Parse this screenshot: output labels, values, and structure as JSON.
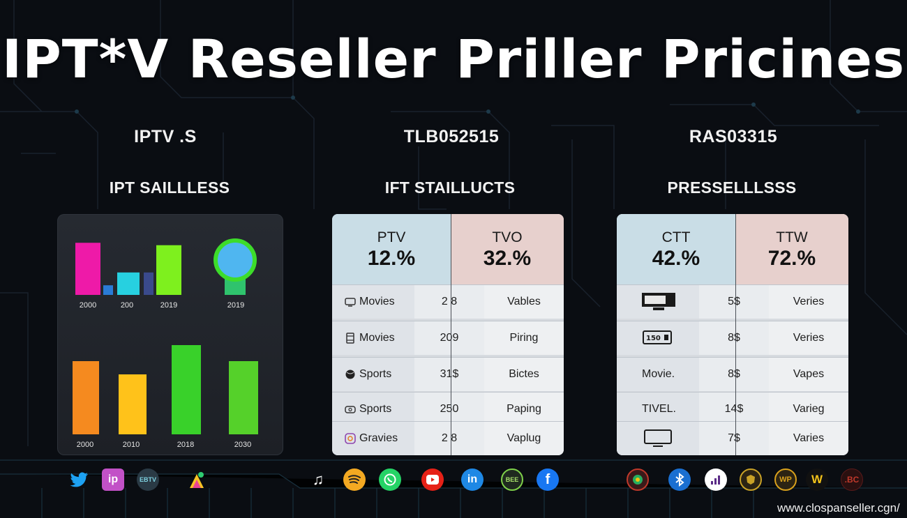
{
  "title": "IPT*V Reseller Priller Pricines",
  "columns": [
    {
      "head": "IPTV .S",
      "sub": "IPT SAILLLESS"
    },
    {
      "head": "TLB052515",
      "sub": "IFT STAILLUCTS"
    },
    {
      "head": "RAS03315",
      "sub": "PRESSELLLSSS"
    }
  ],
  "chart_data": [
    {
      "type": "bar",
      "categories": [
        "2000",
        "200",
        "2019",
        "2019"
      ],
      "series": [
        {
          "values": [
            65,
            0,
            62,
            80
          ]
        },
        {
          "values": [
            12,
            28,
            28,
            0
          ]
        }
      ],
      "colors": [
        "#ee1aa8",
        "#2a7bd6",
        "#27d0e0",
        "#3a4a8c",
        "#7ef01e",
        "#2fc36d"
      ],
      "title": "",
      "xlabel": "",
      "ylabel": ""
    },
    {
      "type": "bar",
      "categories": [
        "2000",
        "2010",
        "2018",
        "2030"
      ],
      "values": [
        105,
        86,
        128,
        105
      ],
      "colors": [
        "#f58a1f",
        "#ffc21a",
        "#39d12a",
        "#55d12a"
      ],
      "title": "",
      "xlabel": "",
      "ylabel": ""
    }
  ],
  "tables": [
    {
      "plans": [
        {
          "name": "PTV",
          "pct": "12.%"
        },
        {
          "name": "TVO",
          "pct": "32.%"
        }
      ],
      "rows": [
        {
          "icon": "tv-outline-icon",
          "label": "Movies",
          "price": "2 8",
          "note": "Vables"
        },
        {
          "icon": "film-strip-icon",
          "label": "Movies",
          "price": "209",
          "note": "Piring"
        },
        {
          "icon": "sports-ball-icon",
          "label": "Sports",
          "price": "31$",
          "note": "Bictes"
        },
        {
          "icon": "stadium-icon",
          "label": "Sports",
          "price": "250",
          "note": "Paping"
        },
        {
          "icon": "camera-icon",
          "label": "Gravies",
          "price": "2 8",
          "note": "Vaplug"
        }
      ]
    },
    {
      "plans": [
        {
          "name": "CTT",
          "pct": "42.%"
        },
        {
          "name": "TTW",
          "pct": "72.%"
        }
      ],
      "rows": [
        {
          "icon": "desktop-monitor-icon",
          "label": "",
          "price": "5$",
          "note": "Veries"
        },
        {
          "icon": "set-top-box-icon",
          "label": "",
          "price": "8$",
          "note": "Veries"
        },
        {
          "icon": "",
          "label": "Movie.",
          "price": "8$",
          "note": "Vapes"
        },
        {
          "icon": "",
          "label": "TIVEL.",
          "price": "14$",
          "note": "Varieg"
        },
        {
          "icon": "monitor-icon",
          "label": "",
          "price": "7$",
          "note": "Varies"
        }
      ]
    }
  ],
  "icons_row": [
    {
      "name": "twitter-icon",
      "text": "",
      "color": "#1da1f2"
    },
    {
      "name": "ip-icon",
      "text": "ip",
      "color": "#c251c7"
    },
    {
      "name": "ebtv-icon",
      "text": "EBTV",
      "color": "#2a3a45"
    },
    {
      "name": "colorful-logo-icon",
      "text": "",
      "color": "#f7c325"
    },
    {
      "name": "music-note-icon",
      "text": "♫",
      "color": "#111111"
    },
    {
      "name": "spotify-icon",
      "text": "",
      "color": "#f3a922"
    },
    {
      "name": "whatsapp-icon",
      "text": "",
      "color": "#25d366"
    },
    {
      "name": "youtube-icon",
      "text": "",
      "color": "#e62117"
    },
    {
      "name": "linkedin-icon",
      "text": "in",
      "color": "#1e88e5"
    },
    {
      "name": "bee-icon",
      "text": "BEE",
      "color": "#1f2a1f"
    },
    {
      "name": "facebook-icon",
      "text": "f",
      "color": "#1877f2"
    },
    {
      "name": "badge-emblem-icon",
      "text": "",
      "color": "#c0392b"
    },
    {
      "name": "bluetooth-icon",
      "text": "",
      "color": "#1a6fd1"
    },
    {
      "name": "signal-bars-icon",
      "text": "",
      "color": "#ffffff"
    },
    {
      "name": "crest-icon",
      "text": "",
      "color": "#c9a227"
    },
    {
      "name": "wp-gold-icon",
      "text": "WP",
      "color": "#d9a11c"
    },
    {
      "name": "w-icon",
      "text": "W",
      "color": "#f2c21a"
    },
    {
      "name": "bc-icon",
      "text": ".BC",
      "color": "#c0392b"
    }
  ],
  "footer_url": "www.clospanseller.cgn/"
}
